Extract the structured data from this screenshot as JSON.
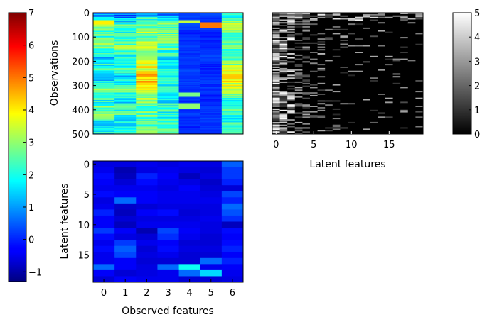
{
  "chart_data": [
    {
      "type": "heatmap",
      "id": "observations",
      "colormap": "jet",
      "color_range": [
        -1.3,
        7
      ],
      "xlabel": "",
      "ylabel": "Observations",
      "y_ticks": [
        "0",
        "100",
        "200",
        "300",
        "400",
        "500"
      ],
      "y_range": [
        0,
        500
      ],
      "x_ticks": [],
      "columns": 7,
      "column_profiles": [
        [
          0.5,
          3.2,
          2.2,
          2.8,
          1.5,
          2.2,
          1.2,
          2.6,
          2.0,
          2.8,
          2.0,
          1.8
        ],
        [
          0.3,
          2.2,
          2.3,
          2.8,
          1.8,
          2.1,
          1.4,
          2.8,
          1.6,
          2.5,
          1.8,
          2.0
        ],
        [
          1.2,
          2.8,
          3.0,
          3.0,
          2.8,
          3.6,
          4.4,
          3.4,
          2.8,
          2.6,
          2.4,
          2.8
        ],
        [
          0.8,
          2.8,
          2.6,
          2.6,
          1.8,
          2.2,
          1.6,
          2.4,
          1.9,
          2.2,
          2.2,
          2.4
        ],
        [
          0.1,
          0.3,
          0.0,
          0.2,
          0.1,
          0.2,
          0.3,
          0.2,
          0.1,
          0.2,
          0.0,
          0.1
        ],
        [
          0.2,
          0.1,
          0.0,
          0.1,
          0.2,
          0.0,
          0.1,
          0.1,
          0.0,
          0.1,
          0.2,
          0.1
        ],
        [
          1.8,
          3.0,
          2.8,
          2.6,
          2.0,
          3.2,
          4.2,
          3.0,
          2.2,
          2.4,
          2.0,
          2.8
        ]
      ],
      "hot_spots": [
        {
          "col": 4,
          "from": 30,
          "to": 45,
          "value": 3.4
        },
        {
          "col": 5,
          "from": 40,
          "to": 60,
          "value": 5.0
        },
        {
          "col": 0,
          "from": 30,
          "to": 50,
          "value": 4.0
        },
        {
          "col": 4,
          "from": 330,
          "to": 345,
          "value": 2.8
        },
        {
          "col": 4,
          "from": 375,
          "to": 395,
          "value": 3.0
        }
      ]
    },
    {
      "type": "heatmap",
      "id": "latent-features",
      "colormap": "gray",
      "color_range": [
        0,
        5
      ],
      "xlabel": "Latent features",
      "ylabel": "",
      "x_ticks": [
        "0",
        "5",
        "10",
        "15"
      ],
      "x_range": [
        0,
        20
      ],
      "y_ticks": []
    },
    {
      "type": "heatmap",
      "id": "loadings",
      "colormap": "jet",
      "color_range": [
        -1.3,
        7
      ],
      "xlabel": "Observed features",
      "ylabel": "Latent features",
      "x_ticks": [
        "0",
        "1",
        "2",
        "3",
        "4",
        "5",
        "6"
      ],
      "y_ticks": [
        "0",
        "5",
        "10",
        "15"
      ],
      "rows": 20,
      "columns": 7,
      "values": [
        [
          -0.5,
          -0.5,
          -0.4,
          -0.5,
          -0.4,
          -0.5,
          0.5
        ],
        [
          -0.4,
          -0.9,
          -0.5,
          -0.4,
          -0.5,
          -0.6,
          0.2
        ],
        [
          -0.2,
          -0.8,
          0.0,
          -0.3,
          -0.8,
          -0.5,
          0.2
        ],
        [
          -0.3,
          -0.6,
          -0.2,
          -0.4,
          -0.5,
          -0.7,
          0.0
        ],
        [
          -0.4,
          -0.4,
          -0.4,
          -0.5,
          -0.3,
          -0.6,
          -0.6
        ],
        [
          -0.2,
          -0.3,
          -0.3,
          -0.4,
          -0.4,
          -0.5,
          0.3
        ],
        [
          -0.5,
          0.6,
          -0.3,
          -0.4,
          -0.4,
          -0.4,
          0.0
        ],
        [
          -0.4,
          -0.7,
          -0.6,
          -0.5,
          -0.5,
          -0.5,
          0.6
        ],
        [
          0.0,
          -0.8,
          -0.3,
          -0.2,
          -0.6,
          -0.5,
          0.4
        ],
        [
          -0.3,
          -0.6,
          -0.5,
          -0.5,
          -0.5,
          -0.4,
          0.1
        ],
        [
          -0.3,
          -0.8,
          -0.4,
          -0.4,
          -0.4,
          -0.5,
          -0.8
        ],
        [
          0.2,
          -0.3,
          -0.9,
          0.3,
          -0.3,
          -0.5,
          -0.2
        ],
        [
          -0.2,
          -0.5,
          -0.6,
          0.1,
          -0.4,
          -0.6,
          -0.3
        ],
        [
          -0.4,
          0.2,
          -0.4,
          -0.3,
          -0.6,
          -0.6,
          -0.2
        ],
        [
          -0.2,
          0.5,
          -0.6,
          -0.2,
          -0.5,
          -0.5,
          0.0
        ],
        [
          -0.4,
          0.3,
          -0.5,
          -0.4,
          -0.6,
          -0.6,
          -0.3
        ],
        [
          -0.4,
          -0.3,
          -0.6,
          -0.6,
          -0.6,
          0.6,
          0.0
        ],
        [
          0.6,
          -0.3,
          -0.5,
          0.6,
          1.9,
          -0.4,
          -0.3
        ],
        [
          -0.3,
          -0.6,
          -0.5,
          -0.4,
          0.6,
          1.5,
          -0.4
        ],
        [
          -0.6,
          -0.3,
          -0.4,
          -0.4,
          -0.6,
          -0.6,
          -0.5
        ]
      ]
    }
  ],
  "colorbars": [
    {
      "id": "jet",
      "ticks": [
        "7",
        "6",
        "5",
        "4",
        "3",
        "2",
        "1",
        "0",
        "−1"
      ],
      "range": [
        -1.3,
        7
      ]
    },
    {
      "id": "gray",
      "ticks": [
        "5",
        "4",
        "3",
        "2",
        "1",
        "0"
      ],
      "range": [
        0,
        5
      ]
    }
  ]
}
